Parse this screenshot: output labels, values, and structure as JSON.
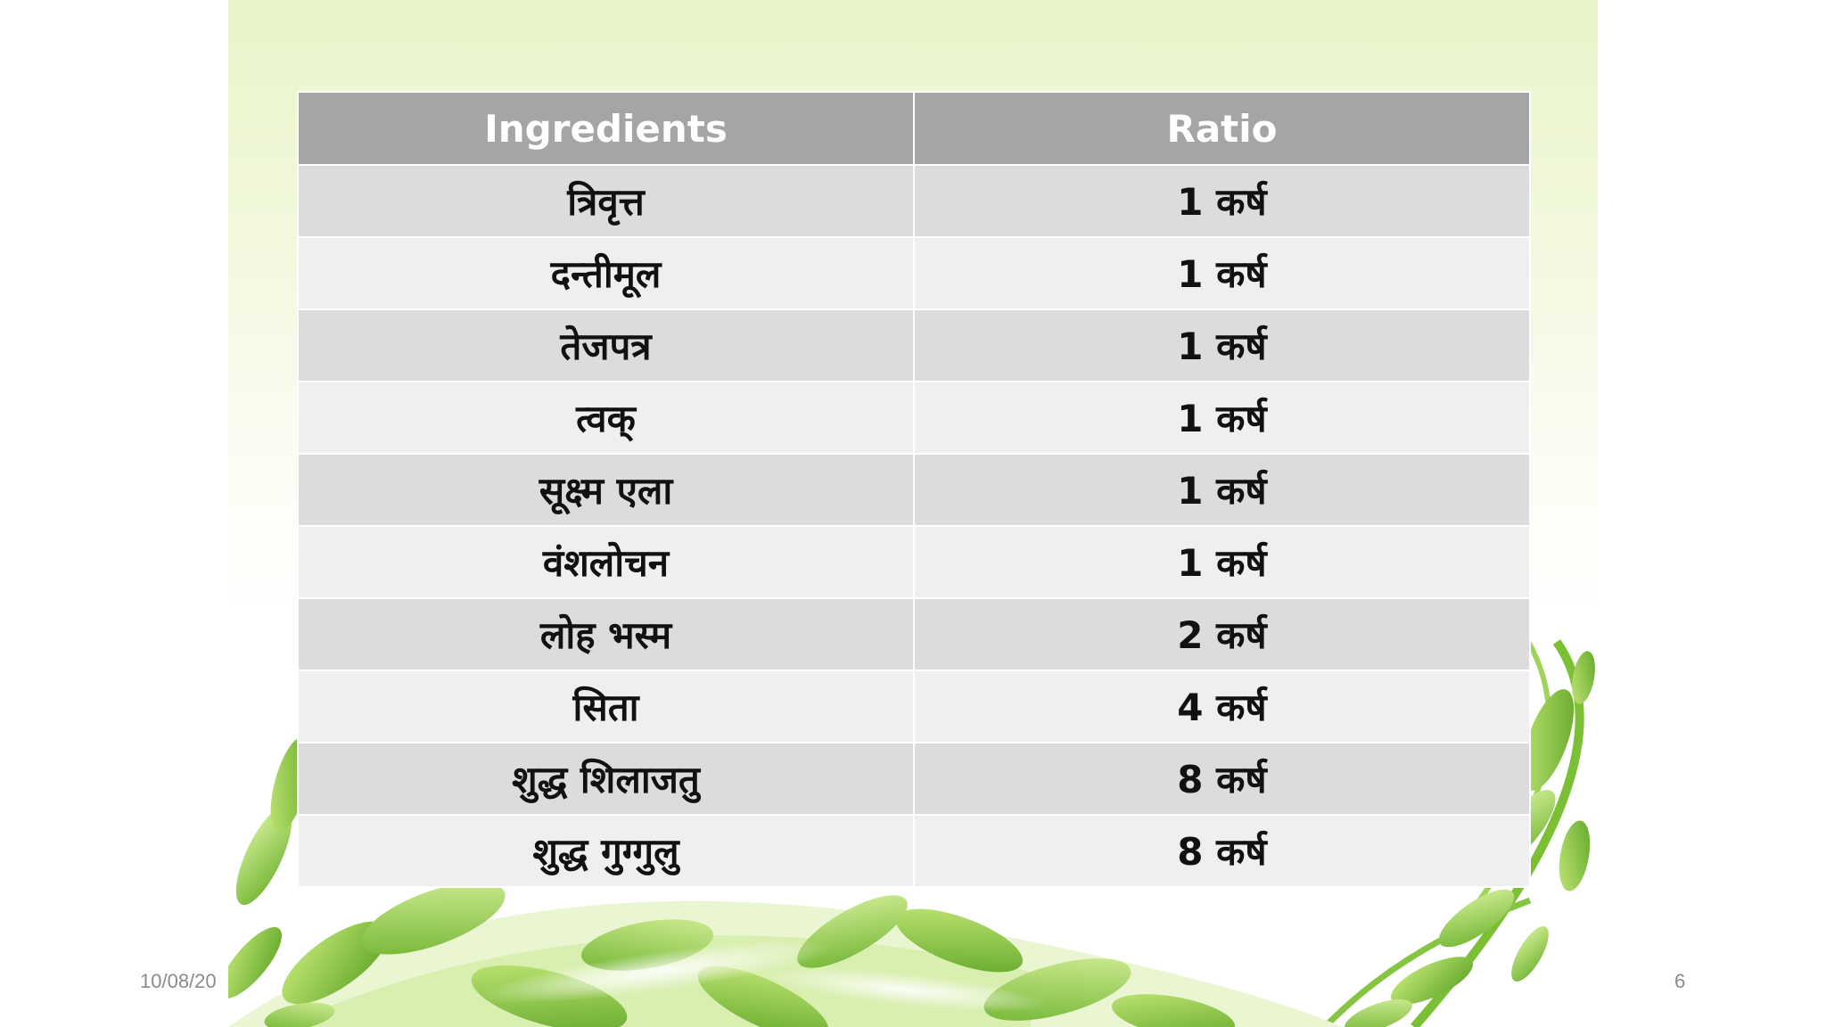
{
  "table": {
    "headers": [
      "Ingredients",
      "Ratio"
    ],
    "rows": [
      [
        "त्रिवृत्त",
        "1 कर्ष"
      ],
      [
        "दन्तीमूल",
        "1 कर्ष"
      ],
      [
        "तेजपत्र",
        "1 कर्ष"
      ],
      [
        "त्वक्",
        "1 कर्ष"
      ],
      [
        "सूक्ष्म एला",
        "1 कर्ष"
      ],
      [
        "वंशलोचन",
        "1 कर्ष"
      ],
      [
        "लोह भस्म",
        "2 कर्ष"
      ],
      [
        "सिता",
        "4 कर्ष"
      ],
      [
        "शुद्ध शिलाजतु",
        "8 कर्ष"
      ],
      [
        "शुद्ध गुग्गुलु",
        "8 कर्ष"
      ]
    ]
  },
  "footer": {
    "date": "10/08/20",
    "page_number": "6"
  },
  "colors": {
    "header_bg": "#a5a5a5",
    "row_dark": "#dcdcdc",
    "row_light": "#efefef",
    "leaf_green": "#8cc63f"
  },
  "decoration": {
    "background_icon": "green-leaves-vine-illustration"
  }
}
